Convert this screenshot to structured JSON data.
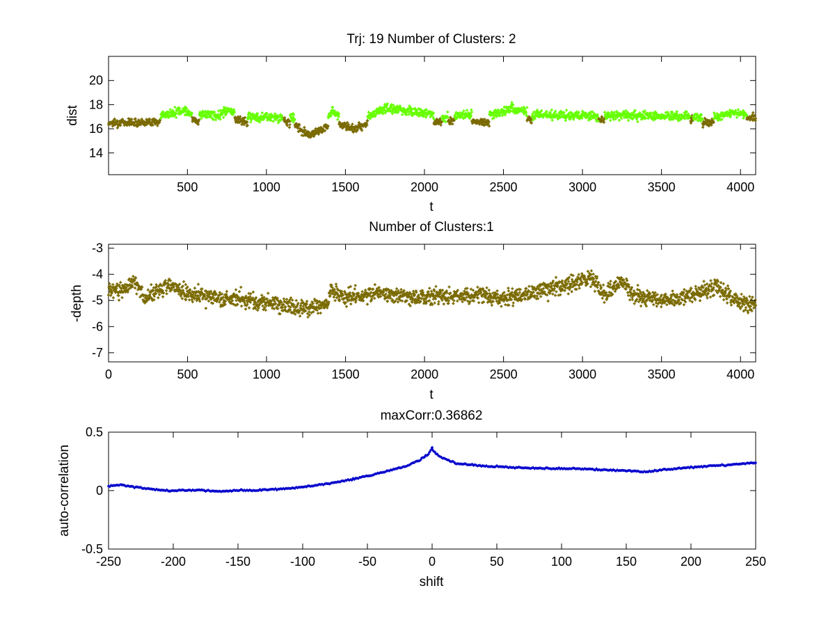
{
  "chart_data": [
    {
      "type": "scatter",
      "title": "Trj: 19 Number of Clusters: 2",
      "xlabel": "t",
      "ylabel": "dist",
      "xlim": [
        1,
        4096
      ],
      "ylim": [
        12.2,
        22
      ],
      "xticks": [
        500,
        1000,
        1500,
        2000,
        2500,
        3000,
        3500,
        4000
      ],
      "yticks": [
        14,
        16,
        18,
        20
      ],
      "marker": "+",
      "series": [
        {
          "name": "cluster 1",
          "color": "#7a6a00",
          "segments": [
            [
              1,
              330
            ],
            [
              530,
              575
            ],
            [
              800,
              880
            ],
            [
              1100,
              1150
            ],
            [
              1180,
              1390
            ],
            [
              1460,
              1640
            ],
            [
              2060,
              2110
            ],
            [
              2150,
              2190
            ],
            [
              2300,
              2410
            ],
            [
              2650,
              2680
            ],
            [
              3100,
              3140
            ],
            [
              3680,
              3700
            ],
            [
              3760,
              3830
            ],
            [
              4040,
              4096
            ]
          ],
          "anchors": [
            [
              1,
              16.5
            ],
            [
              330,
              16.6
            ],
            [
              530,
              16.8
            ],
            [
              575,
              16.6
            ],
            [
              800,
              16.8
            ],
            [
              880,
              16.5
            ],
            [
              1100,
              16.8
            ],
            [
              1150,
              16.5
            ],
            [
              1180,
              16.3
            ],
            [
              1270,
              15.5
            ],
            [
              1390,
              16.2
            ],
            [
              1460,
              16.4
            ],
            [
              1550,
              16.0
            ],
            [
              1640,
              16.5
            ],
            [
              2060,
              16.5
            ],
            [
              2110,
              16.6
            ],
            [
              2150,
              16.6
            ],
            [
              2190,
              16.7
            ],
            [
              2300,
              16.6
            ],
            [
              2410,
              16.5
            ],
            [
              2650,
              16.8
            ],
            [
              2680,
              16.7
            ],
            [
              3100,
              16.7
            ],
            [
              3140,
              16.8
            ],
            [
              3680,
              16.8
            ],
            [
              3700,
              16.8
            ],
            [
              3760,
              16.5
            ],
            [
              3830,
              16.6
            ],
            [
              4040,
              16.8
            ],
            [
              4096,
              16.9
            ]
          ]
        },
        {
          "name": "cluster 2",
          "color": "#66ff00",
          "segments": [
            [
              331,
              529
            ],
            [
              576,
              799
            ],
            [
              881,
              1099
            ],
            [
              1151,
              1179
            ],
            [
              1391,
              1459
            ],
            [
              1641,
              2059
            ],
            [
              2111,
              2149
            ],
            [
              2191,
              2299
            ],
            [
              2411,
              2649
            ],
            [
              2681,
              3099
            ],
            [
              3141,
              3679
            ],
            [
              3701,
              3759
            ],
            [
              3831,
              4039
            ]
          ],
          "anchors": [
            [
              331,
              17.1
            ],
            [
              470,
              17.5
            ],
            [
              529,
              17.3
            ],
            [
              576,
              17.2
            ],
            [
              700,
              17.1
            ],
            [
              760,
              17.6
            ],
            [
              799,
              17.2
            ],
            [
              881,
              17.0
            ],
            [
              1000,
              17.0
            ],
            [
              1099,
              16.9
            ],
            [
              1151,
              17.0
            ],
            [
              1179,
              16.9
            ],
            [
              1391,
              17.0
            ],
            [
              1420,
              17.5
            ],
            [
              1459,
              17.1
            ],
            [
              1641,
              17.0
            ],
            [
              1750,
              17.7
            ],
            [
              1900,
              17.5
            ],
            [
              2059,
              17.2
            ],
            [
              2111,
              17.0
            ],
            [
              2149,
              17.0
            ],
            [
              2191,
              17.1
            ],
            [
              2299,
              17.2
            ],
            [
              2411,
              17.1
            ],
            [
              2560,
              17.7
            ],
            [
              2649,
              17.3
            ],
            [
              2681,
              17.2
            ],
            [
              2900,
              17.1
            ],
            [
              3099,
              17.0
            ],
            [
              3141,
              17.1
            ],
            [
              3400,
              17.1
            ],
            [
              3679,
              17.0
            ],
            [
              3701,
              17.0
            ],
            [
              3759,
              16.9
            ],
            [
              3831,
              16.9
            ],
            [
              3950,
              17.3
            ],
            [
              4039,
              17.2
            ]
          ],
          "noise": 0.35
        }
      ]
    },
    {
      "type": "scatter",
      "title": "Number of Clusters:1",
      "xlabel": "t",
      "ylabel": "-depth",
      "xlim": [
        0,
        4096
      ],
      "ylim": [
        -7.35,
        -2.85
      ],
      "xticks": [
        0,
        500,
        1000,
        1500,
        2000,
        2500,
        3000,
        3500,
        4000
      ],
      "yticks": [
        -7,
        -6,
        -5,
        -4,
        -3
      ],
      "marker": "+",
      "series": [
        {
          "name": "cluster 1",
          "color": "#7a6a00",
          "anchors": [
            [
              0,
              -4.6
            ],
            [
              100,
              -4.6
            ],
            [
              170,
              -4.2
            ],
            [
              230,
              -4.9
            ],
            [
              370,
              -4.4
            ],
            [
              500,
              -4.7
            ],
            [
              700,
              -4.9
            ],
            [
              900,
              -5.0
            ],
            [
              1100,
              -5.2
            ],
            [
              1250,
              -5.3
            ],
            [
              1390,
              -5.1
            ],
            [
              1410,
              -4.6
            ],
            [
              1500,
              -4.9
            ],
            [
              1700,
              -4.7
            ],
            [
              1900,
              -4.9
            ],
            [
              2100,
              -4.8
            ],
            [
              2300,
              -4.8
            ],
            [
              2500,
              -4.9
            ],
            [
              2700,
              -4.7
            ],
            [
              2900,
              -4.4
            ],
            [
              3050,
              -4.1
            ],
            [
              3130,
              -4.8
            ],
            [
              3250,
              -4.2
            ],
            [
              3320,
              -4.8
            ],
            [
              3500,
              -5.0
            ],
            [
              3700,
              -4.8
            ],
            [
              3850,
              -4.5
            ],
            [
              3950,
              -4.9
            ],
            [
              4050,
              -5.2
            ],
            [
              4096,
              -5.0
            ]
          ],
          "noise": 0.3
        }
      ]
    },
    {
      "type": "line",
      "title": "maxCorr:0.36862",
      "xlabel": "shift",
      "ylabel": "auto-correlation",
      "xlim": [
        -250,
        250
      ],
      "ylim": [
        -0.5,
        0.5
      ],
      "xticks": [
        -250,
        -200,
        -150,
        -100,
        -50,
        0,
        50,
        100,
        150,
        200,
        250
      ],
      "yticks": [
        -0.5,
        0,
        0.5
      ],
      "marker": "+",
      "max_corr": 0.36862,
      "series": [
        {
          "name": "auto-correlation",
          "color": "#0000cc",
          "anchors": [
            [
              -250,
              0.04
            ],
            [
              -240,
              0.05
            ],
            [
              -230,
              0.03
            ],
            [
              -215,
              0.01
            ],
            [
              -200,
              0.0
            ],
            [
              -180,
              0.005
            ],
            [
              -165,
              -0.01
            ],
            [
              -150,
              0.0
            ],
            [
              -130,
              0.005
            ],
            [
              -110,
              0.02
            ],
            [
              -100,
              0.03
            ],
            [
              -80,
              0.06
            ],
            [
              -60,
              0.1
            ],
            [
              -40,
              0.15
            ],
            [
              -20,
              0.21
            ],
            [
              -10,
              0.26
            ],
            [
              -3,
              0.31
            ],
            [
              0,
              0.36
            ],
            [
              3,
              0.31
            ],
            [
              10,
              0.27
            ],
            [
              20,
              0.23
            ],
            [
              40,
              0.21
            ],
            [
              60,
              0.2
            ],
            [
              80,
              0.19
            ],
            [
              100,
              0.19
            ],
            [
              130,
              0.18
            ],
            [
              150,
              0.17
            ],
            [
              165,
              0.16
            ],
            [
              180,
              0.18
            ],
            [
              200,
              0.2
            ],
            [
              230,
              0.22
            ],
            [
              250,
              0.24
            ]
          ],
          "noise": 0.006
        }
      ]
    }
  ]
}
